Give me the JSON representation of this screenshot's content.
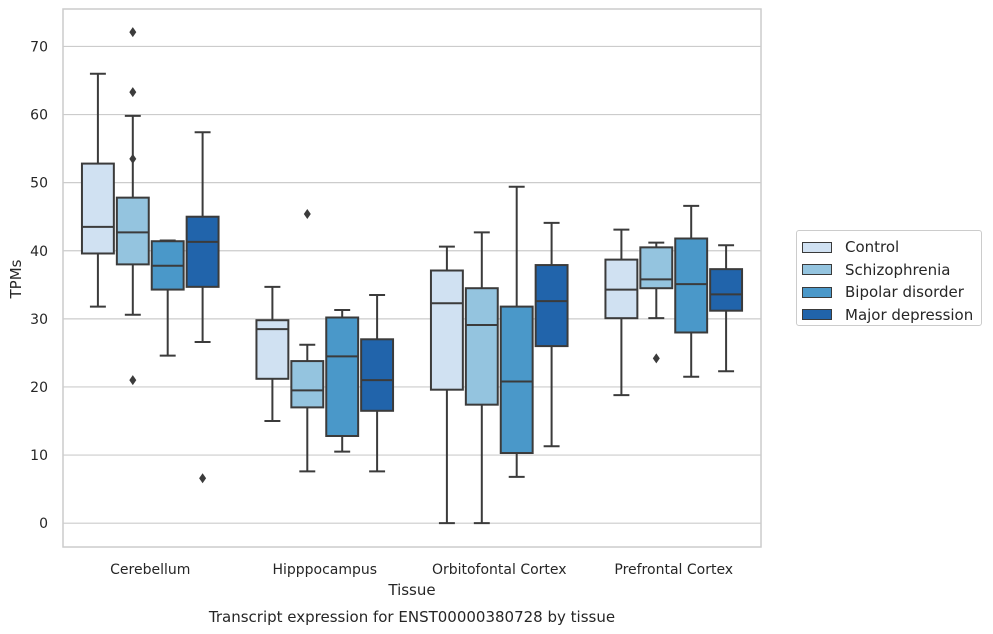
{
  "chart_data": {
    "type": "box",
    "title": "Transcript expression for ENST00000380728 by tissue",
    "xlabel": "Tissue",
    "ylabel": "TPMs",
    "ylim": [
      -3.5,
      75.5
    ],
    "yticks": [
      0,
      10,
      20,
      30,
      40,
      50,
      60,
      70
    ],
    "grid": "horizontal",
    "legend_position": "right",
    "categories": [
      "Cerebellum",
      "Hipppocampus",
      "Orbitofontal Cortex",
      "Prefrontal Cortex"
    ],
    "series": [
      {
        "name": "Control",
        "color": "#d0e1f2",
        "boxes": [
          {
            "whisker_low": 31.8,
            "q1": 39.6,
            "median": 43.5,
            "q3": 52.8,
            "whisker_high": 66.0,
            "outliers": []
          },
          {
            "whisker_low": 15.0,
            "q1": 21.2,
            "median": 28.5,
            "q3": 29.8,
            "whisker_high": 34.7,
            "outliers": []
          },
          {
            "whisker_low": 0.0,
            "q1": 19.6,
            "median": 32.3,
            "q3": 37.1,
            "whisker_high": 40.6,
            "outliers": []
          },
          {
            "whisker_low": 18.8,
            "q1": 30.1,
            "median": 34.3,
            "q3": 38.7,
            "whisker_high": 43.1,
            "outliers": []
          }
        ]
      },
      {
        "name": "Schizophrenia",
        "color": "#94c4df",
        "boxes": [
          {
            "whisker_low": 30.6,
            "q1": 38.0,
            "median": 42.7,
            "q3": 47.8,
            "whisker_high": 59.8,
            "outliers": [
              21.0,
              53.5,
              63.3,
              72.1
            ]
          },
          {
            "whisker_low": 7.6,
            "q1": 17.0,
            "median": 19.5,
            "q3": 23.8,
            "whisker_high": 26.2,
            "outliers": [
              45.4
            ]
          },
          {
            "whisker_low": 0.0,
            "q1": 17.4,
            "median": 29.1,
            "q3": 34.5,
            "whisker_high": 42.7,
            "outliers": []
          },
          {
            "whisker_low": 30.1,
            "q1": 34.5,
            "median": 35.8,
            "q3": 40.5,
            "whisker_high": 41.2,
            "outliers": [
              24.2
            ]
          }
        ]
      },
      {
        "name": "Bipolar disorder",
        "color": "#4a98c9",
        "boxes": [
          {
            "whisker_low": 24.6,
            "q1": 34.3,
            "median": 37.8,
            "q3": 41.4,
            "whisker_high": 41.5,
            "outliers": []
          },
          {
            "whisker_low": 10.5,
            "q1": 12.8,
            "median": 24.5,
            "q3": 30.2,
            "whisker_high": 31.3,
            "outliers": []
          },
          {
            "whisker_low": 6.8,
            "q1": 10.3,
            "median": 20.8,
            "q3": 31.8,
            "whisker_high": 49.4,
            "outliers": []
          },
          {
            "whisker_low": 21.5,
            "q1": 28.0,
            "median": 35.1,
            "q3": 41.8,
            "whisker_high": 46.6,
            "outliers": []
          }
        ]
      },
      {
        "name": "Major depression",
        "color": "#2164ab",
        "boxes": [
          {
            "whisker_low": 26.6,
            "q1": 34.7,
            "median": 41.3,
            "q3": 45.0,
            "whisker_high": 57.4,
            "outliers": [
              6.6
            ]
          },
          {
            "whisker_low": 7.6,
            "q1": 16.5,
            "median": 21.0,
            "q3": 27.0,
            "whisker_high": 33.5,
            "outliers": []
          },
          {
            "whisker_low": 11.3,
            "q1": 26.0,
            "median": 32.6,
            "q3": 37.9,
            "whisker_high": 44.1,
            "outliers": []
          },
          {
            "whisker_low": 22.3,
            "q1": 31.2,
            "median": 33.6,
            "q3": 37.3,
            "whisker_high": 40.8,
            "outliers": []
          }
        ]
      }
    ]
  }
}
